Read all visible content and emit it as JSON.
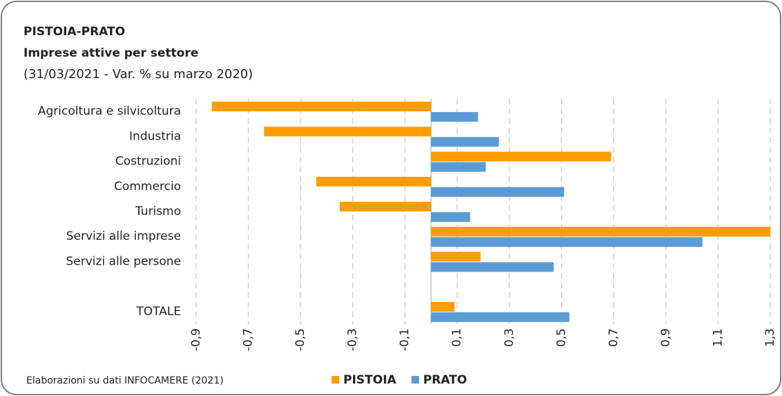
{
  "chart_data": {
    "type": "hbar",
    "title": "PISTOIA-PRATO",
    "subtitle": "Imprese attive per settore",
    "caption": "(31/03/2021 - Var. %  su marzo 2020)",
    "source": "Elaborazioni su dati INFOCAMERE (2021)",
    "categories": [
      "Agricoltura e silvicoltura",
      "Industria",
      "Costruzioni",
      "Commercio",
      "Turismo",
      "Servizi alle imprese",
      "Servizi alle persone",
      null,
      "TOTALE"
    ],
    "series": [
      {
        "name": "PISTOIA",
        "color": "#ff9c00",
        "values": [
          -0.84,
          -0.64,
          0.69,
          -0.44,
          -0.35,
          1.3,
          0.19,
          null,
          0.09
        ]
      },
      {
        "name": "PRATO",
        "color": "#5b9bd5",
        "values": [
          0.18,
          0.26,
          0.21,
          0.51,
          0.15,
          1.04,
          0.47,
          null,
          0.53
        ]
      }
    ],
    "xlim": [
      -0.9,
      1.3
    ],
    "xticks": [
      {
        "value": -0.9,
        "label": "-0,9"
      },
      {
        "value": -0.7,
        "label": "-0,7"
      },
      {
        "value": -0.5,
        "label": "-0,5"
      },
      {
        "value": -0.3,
        "label": "-0,3"
      },
      {
        "value": -0.1,
        "label": "-0,1"
      },
      {
        "value": 0.1,
        "label": "0,1"
      },
      {
        "value": 0.3,
        "label": "0,3"
      },
      {
        "value": 0.5,
        "label": "0,5"
      },
      {
        "value": 0.7,
        "label": "0,7"
      },
      {
        "value": 0.9,
        "label": "0,9"
      },
      {
        "value": 1.1,
        "label": "1,1"
      },
      {
        "value": 1.3,
        "label": "1,3"
      }
    ],
    "grid": true,
    "legend": "bottom"
  }
}
